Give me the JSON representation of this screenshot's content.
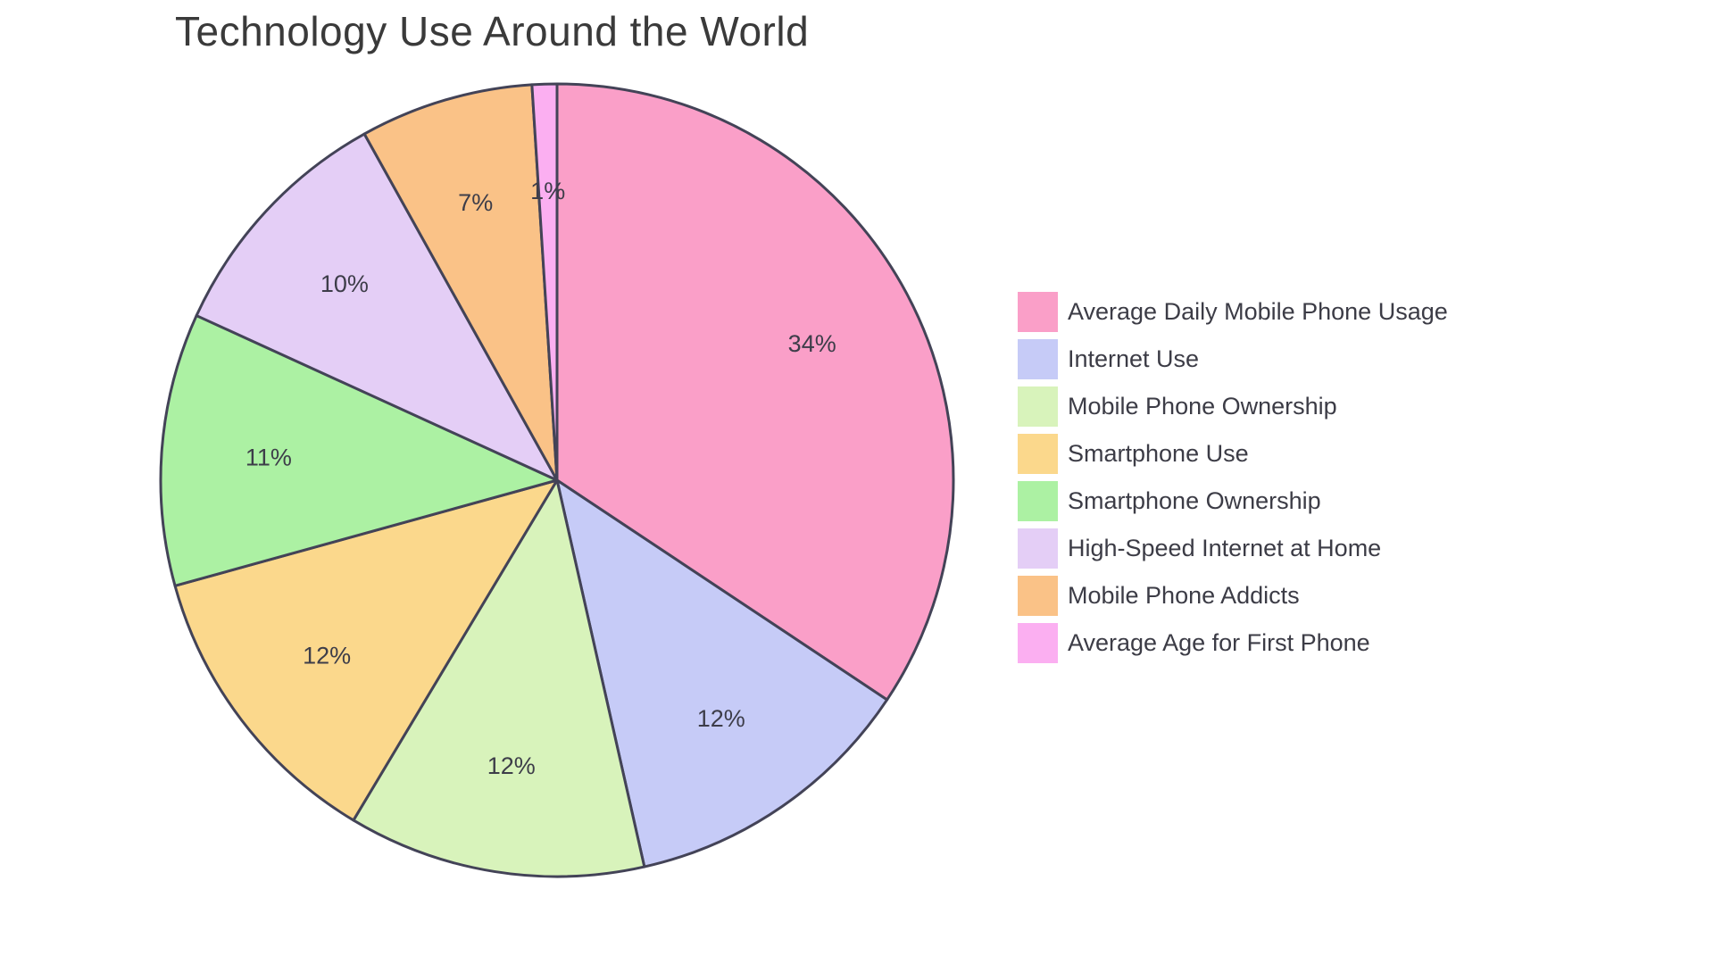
{
  "chart_data": {
    "type": "pie",
    "title": "Technology Use Around the World",
    "legend_position": "right",
    "direction": "clockwise",
    "start_angle_deg": 0,
    "slice_outline_color": "#434357",
    "slice_label_color": "#3d3d49",
    "title_color": "#3a3a3a",
    "background_color": "#ffffff",
    "slices": [
      {
        "label": "Average Daily Mobile Phone Usage",
        "value_percent": 34,
        "displayed_label": "34%",
        "color": "#FA9FC8"
      },
      {
        "label": "Internet Use",
        "value_percent": 12,
        "displayed_label": "12%",
        "color": "#C6CBF7"
      },
      {
        "label": "Mobile Phone Ownership",
        "value_percent": 12,
        "displayed_label": "12%",
        "color": "#D8F3BB"
      },
      {
        "label": "Smartphone Use",
        "value_percent": 12,
        "displayed_label": "12%",
        "color": "#FBD88C"
      },
      {
        "label": "Smartphone Ownership",
        "value_percent": 11,
        "displayed_label": "11%",
        "color": "#ACF1A3"
      },
      {
        "label": "High-Speed Internet at Home",
        "value_percent": 10,
        "displayed_label": "10%",
        "color": "#E4CEF6"
      },
      {
        "label": "Mobile Phone Addicts",
        "value_percent": 7,
        "displayed_label": "7%",
        "color": "#FAC287"
      },
      {
        "label": "Average Age for First Phone",
        "value_percent": 1,
        "displayed_label": "1%",
        "color": "#FBAFF1"
      }
    ]
  }
}
